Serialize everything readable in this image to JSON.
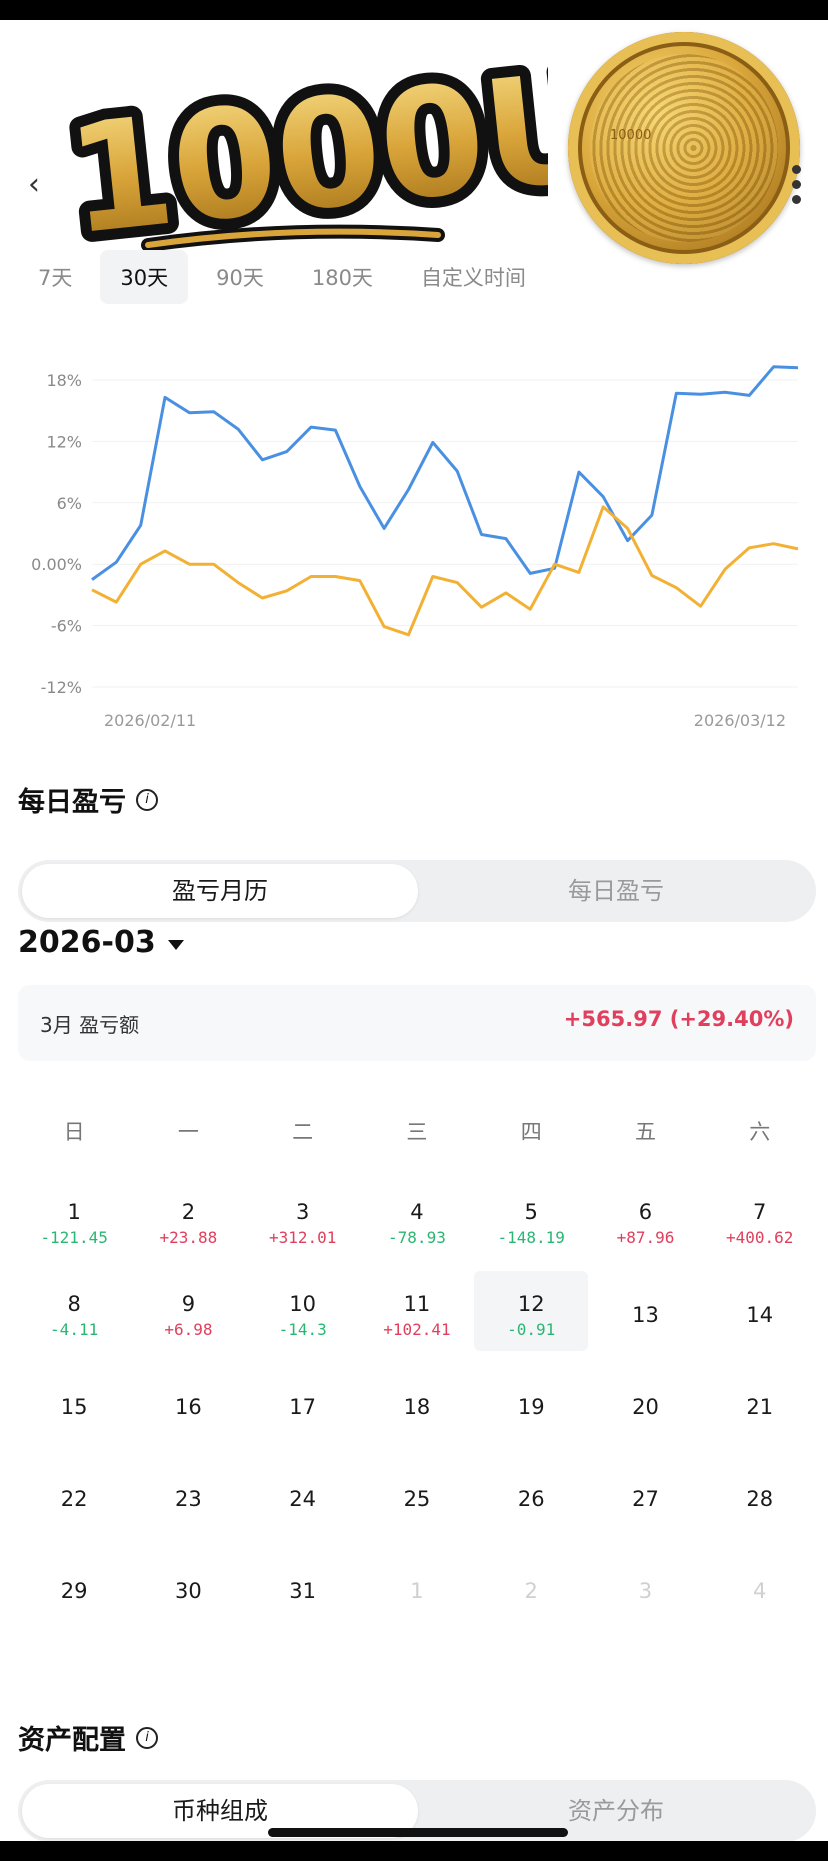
{
  "header": {
    "logo_text": "1000U买",
    "coin_text": "10000"
  },
  "period_tabs": [
    "7天",
    "30天",
    "90天",
    "180天",
    "自定义时间"
  ],
  "active_period": "30天",
  "chart_data": {
    "type": "line",
    "x_start": "2026/02/11",
    "x_end": "2026/03/12",
    "x_tick_labels": [
      "2026/02/11",
      "2026/03/12"
    ],
    "y_tick_labels": [
      "18%",
      "12%",
      "6%",
      "0.00%",
      "-6%",
      "-12%"
    ],
    "ylim": [
      -12,
      18
    ],
    "grid": true,
    "series": [
      {
        "color": "#4a90e2",
        "values": [
          -1.5,
          0.2,
          3.8,
          16.3,
          14.8,
          14.9,
          13.2,
          10.2,
          11.0,
          13.4,
          13.1,
          7.6,
          3.5,
          7.3,
          11.9,
          9.1,
          2.9,
          2.5,
          -0.9,
          -0.4,
          9.0,
          6.6,
          2.3,
          4.8,
          16.7,
          16.6,
          16.8,
          16.5,
          19.3,
          19.2
        ]
      },
      {
        "color": "#f2b134",
        "values": [
          -2.5,
          -3.7,
          0.0,
          1.3,
          0.0,
          0.0,
          -1.8,
          -3.3,
          -2.6,
          -1.2,
          -1.2,
          -1.6,
          -6.1,
          -6.9,
          -1.2,
          -1.8,
          -4.2,
          -2.8,
          -4.4,
          0.0,
          -0.8,
          5.6,
          3.5,
          -1.1,
          -2.3,
          -4.1,
          -0.5,
          1.6,
          2.0,
          1.5
        ]
      }
    ]
  },
  "daily_pnl": {
    "title": "每日盈亏",
    "tabs": [
      "盈亏月历",
      "每日盈亏"
    ],
    "month": "2026-03",
    "summary_label": "3月 盈亏额",
    "summary_value": "+565.97 (+29.40%)",
    "weekdays": [
      "日",
      "一",
      "二",
      "三",
      "四",
      "五",
      "六"
    ],
    "weeks": [
      [
        {
          "d": "1",
          "p": "-121.45"
        },
        {
          "d": "2",
          "p": "+23.88"
        },
        {
          "d": "3",
          "p": "+312.01"
        },
        {
          "d": "4",
          "p": "-78.93"
        },
        {
          "d": "5",
          "p": "-148.19"
        },
        {
          "d": "6",
          "p": "+87.96"
        },
        {
          "d": "7",
          "p": "+400.62"
        }
      ],
      [
        {
          "d": "8",
          "p": "-4.11"
        },
        {
          "d": "9",
          "p": "+6.98"
        },
        {
          "d": "10",
          "p": "-14.3"
        },
        {
          "d": "11",
          "p": "+102.41"
        },
        {
          "d": "12",
          "p": "-0.91",
          "today": true
        },
        {
          "d": "13"
        },
        {
          "d": "14"
        }
      ],
      [
        {
          "d": "15"
        },
        {
          "d": "16"
        },
        {
          "d": "17"
        },
        {
          "d": "18"
        },
        {
          "d": "19"
        },
        {
          "d": "20"
        },
        {
          "d": "21"
        }
      ],
      [
        {
          "d": "22"
        },
        {
          "d": "23"
        },
        {
          "d": "24"
        },
        {
          "d": "25"
        },
        {
          "d": "26"
        },
        {
          "d": "27"
        },
        {
          "d": "28"
        }
      ],
      [
        {
          "d": "29"
        },
        {
          "d": "30"
        },
        {
          "d": "31"
        },
        {
          "d": "1",
          "dim": true
        },
        {
          "d": "2",
          "dim": true
        },
        {
          "d": "3",
          "dim": true
        },
        {
          "d": "4",
          "dim": true
        }
      ]
    ]
  },
  "asset_allocation": {
    "title": "资产配置",
    "tabs": [
      "币种组成",
      "资产分布"
    ]
  },
  "colors": {
    "positive": "#e0405d",
    "negative": "#2bb673",
    "blue_line": "#4a90e2",
    "yellow_line": "#f2b134"
  }
}
